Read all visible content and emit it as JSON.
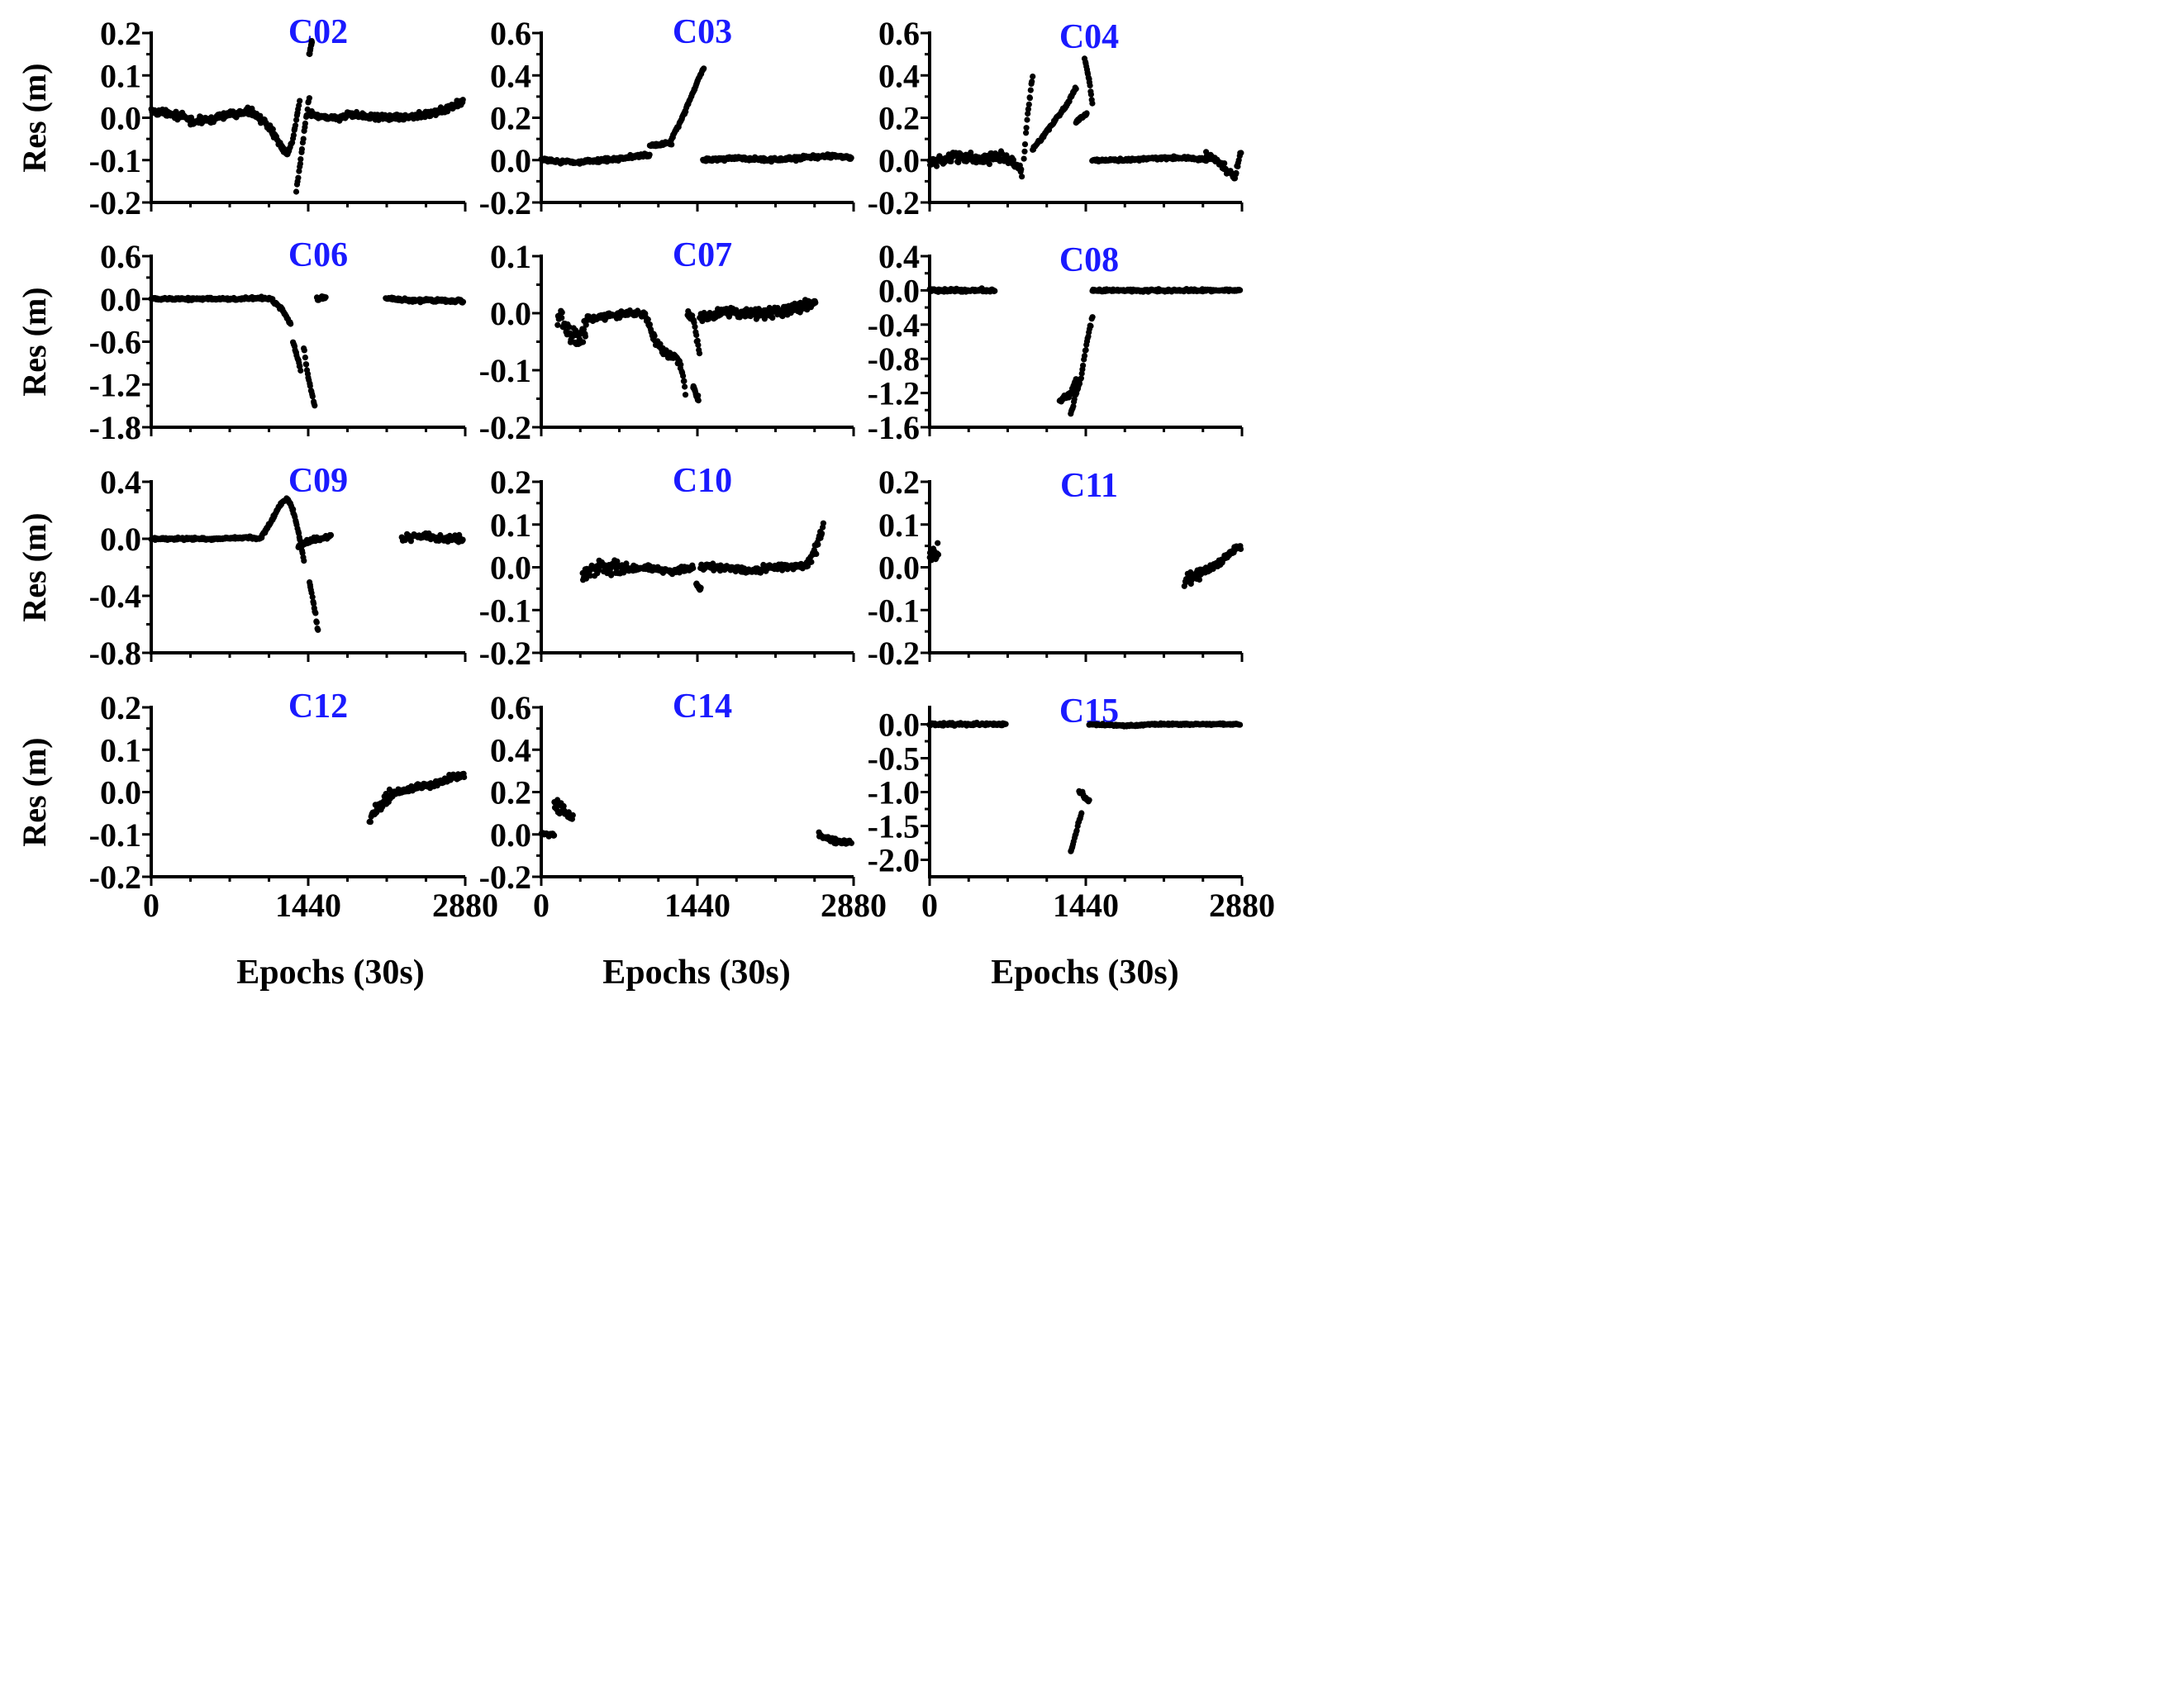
{
  "figure": {
    "ylabel": "Res (m)",
    "xlabel": "Epochs (30s)",
    "xticks": [
      0,
      1440,
      2880
    ],
    "title_color": "#1a1aff",
    "marker_color": "#000000"
  },
  "chart_data": [
    {
      "type": "scatter",
      "title": "C02",
      "xlabel": "",
      "ylabel": "Res (m)",
      "xlim": [
        0,
        2880
      ],
      "ylim": [
        -0.2,
        0.2
      ],
      "yticks": [
        0.2,
        0.1,
        0.0,
        -0.1,
        -0.2
      ],
      "ytick_labels": [
        "0.2",
        "0.1",
        "0.0",
        "-0.1",
        "-0.2"
      ],
      "series": [
        {
          "x": [
            0,
            200,
            400,
            700,
            900,
            1000,
            1100,
            1200,
            1250
          ],
          "y": [
            0.015,
            0.01,
            -0.01,
            0.005,
            0.015,
            0.0,
            -0.03,
            -0.07,
            -0.085
          ],
          "noise": 0.012
        },
        {
          "x": [
            1250,
            1300,
            1340,
            1360
          ],
          "y": [
            -0.085,
            -0.05,
            0.01,
            0.04
          ],
          "noise": 0.005
        },
        {
          "x": [
            1330,
            1370,
            1420,
            1450
          ],
          "y": [
            -0.17,
            -0.1,
            0.0,
            0.05
          ],
          "noise": 0.006
        },
        {
          "x": [
            1450,
            1650,
            1900,
            2200,
            2500,
            2700,
            2860
          ],
          "y": [
            0.005,
            0.0,
            0.005,
            0.0,
            0.005,
            0.02,
            0.04
          ],
          "noise": 0.012
        },
        {
          "x": [
            1450,
            1475
          ],
          "y": [
            0.15,
            0.18
          ],
          "noise": 0.005
        }
      ]
    },
    {
      "type": "scatter",
      "title": "C03",
      "xlabel": "",
      "ylabel": "",
      "xlim": [
        0,
        2880
      ],
      "ylim": [
        -0.2,
        0.6
      ],
      "yticks": [
        0.6,
        0.4,
        0.2,
        0.0,
        -0.2
      ],
      "ytick_labels": [
        "0.6",
        "0.4",
        "0.2",
        "0.0",
        "-0.2"
      ],
      "series": [
        {
          "x": [
            0,
            300,
            600,
            900,
            1000
          ],
          "y": [
            0.0,
            -0.01,
            0.0,
            0.02,
            0.02
          ],
          "noise": 0.012
        },
        {
          "x": [
            1000,
            1150,
            1200
          ],
          "y": [
            0.07,
            0.08,
            0.08
          ],
          "noise": 0.01
        },
        {
          "x": [
            1200,
            1300,
            1400,
            1500
          ],
          "y": [
            0.1,
            0.2,
            0.32,
            0.44
          ],
          "noise": 0.012
        },
        {
          "x": [
            1490,
            1800,
            2100,
            2400,
            2700,
            2860
          ],
          "y": [
            0.0,
            0.01,
            0.0,
            0.01,
            0.02,
            0.01
          ],
          "noise": 0.012
        }
      ]
    },
    {
      "type": "scatter",
      "title": "C04",
      "xlabel": "",
      "ylabel": "",
      "xlim": [
        0,
        2880
      ],
      "ylim": [
        -0.2,
        0.6
      ],
      "yticks": [
        0.6,
        0.4,
        0.2,
        0.0,
        -0.2
      ],
      "ytick_labels": [
        "0.6",
        "0.4",
        "0.2",
        "0.0",
        "-0.2"
      ],
      "series": [
        {
          "x": [
            0,
            150,
            300,
            450,
            600,
            750,
            850
          ],
          "y": [
            -0.01,
            0.0,
            0.02,
            0.0,
            0.02,
            0.0,
            -0.05
          ],
          "noise": 0.035
        },
        {
          "x": [
            870,
            900,
            950
          ],
          "y": [
            0.0,
            0.2,
            0.4
          ],
          "noise": 0.012
        },
        {
          "x": [
            950,
            1100,
            1250,
            1350
          ],
          "y": [
            0.05,
            0.15,
            0.25,
            0.34
          ],
          "noise": 0.012
        },
        {
          "x": [
            1350,
            1400,
            1450
          ],
          "y": [
            0.18,
            0.2,
            0.22
          ],
          "noise": 0.012
        },
        {
          "x": [
            1430,
            1470,
            1500
          ],
          "y": [
            0.48,
            0.38,
            0.27
          ],
          "noise": 0.008
        },
        {
          "x": [
            1500,
            1800,
            2100,
            2400,
            2550
          ],
          "y": [
            0.0,
            0.0,
            0.01,
            0.01,
            0.0
          ],
          "noise": 0.01
        },
        {
          "x": [
            2550,
            2650,
            2750,
            2820,
            2870
          ],
          "y": [
            0.02,
            0.0,
            -0.05,
            -0.08,
            0.05
          ],
          "noise": 0.025
        }
      ]
    },
    {
      "type": "scatter",
      "title": "C06",
      "xlabel": "",
      "ylabel": "Res (m)",
      "xlim": [
        0,
        2880
      ],
      "ylim": [
        -1.8,
        0.6
      ],
      "yticks": [
        0.6,
        0.0,
        -0.6,
        -1.2,
        -1.8
      ],
      "ytick_labels": [
        "0.6",
        "0.0",
        "-0.6",
        "-1.2",
        "-1.8"
      ],
      "series": [
        {
          "x": [
            0,
            400,
            800,
            1000,
            1100
          ],
          "y": [
            0.0,
            0.0,
            0.0,
            0.01,
            0.0
          ],
          "noise": 0.025
        },
        {
          "x": [
            1100,
            1200,
            1280
          ],
          "y": [
            0.0,
            -0.15,
            -0.35
          ],
          "noise": 0.03
        },
        {
          "x": [
            1300,
            1370
          ],
          "y": [
            -0.6,
            -1.0
          ],
          "noise": 0.05
        },
        {
          "x": [
            1400,
            1440,
            1500
          ],
          "y": [
            -0.7,
            -1.1,
            -1.5
          ],
          "noise": 0.05
        },
        {
          "x": [
            1520,
            1600
          ],
          "y": [
            0.0,
            0.03
          ],
          "noise": 0.04
        },
        {
          "x": [
            2150,
            2400,
            2600,
            2860
          ],
          "y": [
            0.0,
            -0.02,
            -0.02,
            -0.03
          ],
          "noise": 0.03
        }
      ]
    },
    {
      "type": "scatter",
      "title": "C07",
      "xlabel": "",
      "ylabel": "",
      "xlim": [
        0,
        2880
      ],
      "ylim": [
        -0.2,
        0.1
      ],
      "yticks": [
        0.1,
        0.0,
        -0.1,
        -0.2
      ],
      "ytick_labels": [
        "0.1",
        "0.0",
        "-0.1",
        "-0.2"
      ],
      "series": [
        {
          "x": [
            150,
            250,
            350,
            420
          ],
          "y": [
            0.0,
            -0.03,
            -0.05,
            -0.02
          ],
          "noise": 0.028
        },
        {
          "x": [
            420,
            600,
            800,
            950
          ],
          "y": [
            -0.01,
            -0.005,
            0.0,
            0.0
          ],
          "noise": 0.008
        },
        {
          "x": [
            960,
            1050,
            1150,
            1250,
            1300,
            1330
          ],
          "y": [
            0.0,
            -0.05,
            -0.07,
            -0.08,
            -0.1,
            -0.14
          ],
          "noise": 0.01
        },
        {
          "x": [
            1350,
            1400,
            1460
          ],
          "y": [
            0.0,
            -0.01,
            -0.07
          ],
          "noise": 0.008
        },
        {
          "x": [
            1400,
            1450
          ],
          "y": [
            -0.13,
            -0.15
          ],
          "noise": 0.008
        },
        {
          "x": [
            1460,
            1700,
            2000,
            2200,
            2400,
            2530
          ],
          "y": [
            -0.005,
            0.0,
            0.0,
            0.005,
            0.01,
            0.02
          ],
          "noise": 0.015
        }
      ]
    },
    {
      "type": "scatter",
      "title": "C08",
      "xlabel": "",
      "ylabel": "",
      "xlim": [
        0,
        2880
      ],
      "ylim": [
        -1.6,
        0.4
      ],
      "yticks": [
        0.4,
        0.0,
        -0.4,
        -0.8,
        -1.2,
        -1.6
      ],
      "ytick_labels": [
        "0.4",
        "0.0",
        "-0.4",
        "-0.8",
        "-1.2",
        "-1.6"
      ],
      "series": [
        {
          "x": [
            0,
            200,
            400,
            600
          ],
          "y": [
            0.0,
            0.0,
            0.0,
            0.0
          ],
          "noise": 0.03
        },
        {
          "x": [
            1200,
            1300,
            1350
          ],
          "y": [
            -1.3,
            -1.2,
            -1.05
          ],
          "noise": 0.06
        },
        {
          "x": [
            1300,
            1400,
            1450,
            1500
          ],
          "y": [
            -1.45,
            -1.0,
            -0.6,
            -0.3
          ],
          "noise": 0.04
        },
        {
          "x": [
            1500,
            1800,
            2100,
            2400,
            2700,
            2860
          ],
          "y": [
            0.0,
            0.0,
            0.0,
            0.0,
            0.0,
            0.0
          ],
          "noise": 0.02
        }
      ]
    },
    {
      "type": "scatter",
      "title": "C09",
      "xlabel": "",
      "ylabel": "Res (m)",
      "xlim": [
        0,
        2880
      ],
      "ylim": [
        -0.8,
        0.4
      ],
      "yticks": [
        0.4,
        0.0,
        -0.4,
        -0.8
      ],
      "ytick_labels": [
        "0.4",
        "0.0",
        "-0.4",
        "-0.8"
      ],
      "series": [
        {
          "x": [
            0,
            300,
            600,
            900,
            1000
          ],
          "y": [
            0.0,
            0.0,
            0.0,
            0.01,
            0.0
          ],
          "noise": 0.012
        },
        {
          "x": [
            1000,
            1100,
            1200,
            1250,
            1300
          ],
          "y": [
            0.0,
            0.12,
            0.26,
            0.28,
            0.2
          ],
          "noise": 0.015
        },
        {
          "x": [
            1300,
            1350,
            1400
          ],
          "y": [
            0.2,
            0.05,
            -0.15
          ],
          "noise": 0.015
        },
        {
          "x": [
            1350,
            1450,
            1550,
            1650
          ],
          "y": [
            -0.05,
            -0.02,
            0.0,
            0.02
          ],
          "noise": 0.025
        },
        {
          "x": [
            1450,
            1500,
            1530
          ],
          "y": [
            -0.3,
            -0.5,
            -0.65
          ],
          "noise": 0.02
        },
        {
          "x": [
            2300,
            2500,
            2700,
            2860
          ],
          "y": [
            0.0,
            0.02,
            0.0,
            0.0
          ],
          "noise": 0.03
        }
      ]
    },
    {
      "type": "scatter",
      "title": "C10",
      "xlabel": "",
      "ylabel": "",
      "xlim": [
        0,
        2880
      ],
      "ylim": [
        -0.2,
        0.2
      ],
      "yticks": [
        0.2,
        0.1,
        0.0,
        -0.1,
        -0.2
      ],
      "ytick_labels": [
        "0.2",
        "0.1",
        "0.0",
        "-0.1",
        "-0.2"
      ],
      "series": [
        {
          "x": [
            380,
            500,
            650,
            800
          ],
          "y": [
            -0.02,
            0.0,
            0.0,
            -0.005
          ],
          "noise": 0.028
        },
        {
          "x": [
            800,
            1000,
            1200,
            1400
          ],
          "y": [
            -0.005,
            0.0,
            -0.01,
            0.0
          ],
          "noise": 0.01
        },
        {
          "x": [
            1430,
            1470
          ],
          "y": [
            -0.04,
            -0.05
          ],
          "noise": 0.01
        },
        {
          "x": [
            1470,
            1700,
            1900,
            2100,
            2300,
            2450
          ],
          "y": [
            0.0,
            0.0,
            -0.01,
            0.0,
            0.0,
            0.005
          ],
          "noise": 0.012
        },
        {
          "x": [
            2450,
            2530,
            2600
          ],
          "y": [
            0.01,
            0.04,
            0.1
          ],
          "noise": 0.02
        }
      ]
    },
    {
      "type": "scatter",
      "title": "C11",
      "xlabel": "",
      "ylabel": "",
      "xlim": [
        0,
        2880
      ],
      "ylim": [
        -0.2,
        0.2
      ],
      "yticks": [
        0.2,
        0.1,
        0.0,
        -0.1,
        -0.2
      ],
      "ytick_labels": [
        "0.2",
        "0.1",
        "0.0",
        "-0.1",
        "-0.2"
      ],
      "series": [
        {
          "x": [
            0,
            40,
            80
          ],
          "y": [
            0.02,
            0.03,
            0.04
          ],
          "noise": 0.03
        },
        {
          "x": [
            2350,
            2450,
            2500
          ],
          "y": [
            -0.03,
            -0.02,
            -0.01
          ],
          "noise": 0.03
        },
        {
          "x": [
            2500,
            2650,
            2800,
            2870
          ],
          "y": [
            -0.01,
            0.005,
            0.04,
            0.05
          ],
          "noise": 0.01
        }
      ]
    },
    {
      "type": "scatter",
      "title": "C12",
      "xlabel": "Epochs (30s)",
      "ylabel": "Res (m)",
      "xlim": [
        0,
        2880
      ],
      "ylim": [
        -0.2,
        0.2
      ],
      "yticks": [
        0.2,
        0.1,
        0.0,
        -0.1,
        -0.2
      ],
      "ytick_labels": [
        "0.2",
        "0.1",
        "0.0",
        "-0.1",
        "-0.2"
      ],
      "series": [
        {
          "x": [
            2000,
            2100,
            2200
          ],
          "y": [
            -0.07,
            -0.03,
            -0.01
          ],
          "noise": 0.025
        },
        {
          "x": [
            2200,
            2400,
            2600,
            2750,
            2870
          ],
          "y": [
            -0.005,
            0.01,
            0.02,
            0.035,
            0.04
          ],
          "noise": 0.01
        }
      ]
    },
    {
      "type": "scatter",
      "title": "C14",
      "xlabel": "Epochs (30s)",
      "ylabel": "",
      "xlim": [
        0,
        2880
      ],
      "ylim": [
        -0.2,
        0.6
      ],
      "yticks": [
        0.6,
        0.4,
        0.2,
        0.0,
        -0.2
      ],
      "ytick_labels": [
        "0.6",
        "0.4",
        "0.2",
        "0.0",
        "-0.2"
      ],
      "series": [
        {
          "x": [
            0,
            60,
            120
          ],
          "y": [
            0.0,
            0.0,
            0.0
          ],
          "noise": 0.01
        },
        {
          "x": [
            120,
            180,
            240,
            290
          ],
          "y": [
            0.14,
            0.12,
            0.1,
            0.06
          ],
          "noise": 0.04
        },
        {
          "x": [
            2560,
            2700,
            2860
          ],
          "y": [
            0.0,
            -0.03,
            -0.04
          ],
          "noise": 0.015
        }
      ]
    },
    {
      "type": "scatter",
      "title": "C15",
      "xlabel": "Epochs (30s)",
      "ylabel": "",
      "xlim": [
        0,
        2880
      ],
      "ylim": [
        -2.25,
        0.25
      ],
      "yticks": [
        0.0,
        -0.5,
        -1.0,
        -1.5,
        -2.0
      ],
      "ytick_labels": [
        "0.0",
        "-0.5",
        "-1.0",
        "-1.5",
        "-2.0"
      ],
      "series": [
        {
          "x": [
            0,
            300,
            500,
            700
          ],
          "y": [
            0.0,
            0.0,
            0.0,
            0.0
          ],
          "noise": 0.03
        },
        {
          "x": [
            1300,
            1350,
            1400
          ],
          "y": [
            -1.9,
            -1.6,
            -1.3
          ],
          "noise": 0.04
        },
        {
          "x": [
            1380,
            1420,
            1470
          ],
          "y": [
            -1.0,
            -1.05,
            -1.15
          ],
          "noise": 0.05
        },
        {
          "x": [
            1470,
            1800,
            2100,
            2500,
            2860
          ],
          "y": [
            0.0,
            -0.02,
            0.0,
            0.0,
            0.0
          ],
          "noise": 0.02
        }
      ]
    }
  ]
}
